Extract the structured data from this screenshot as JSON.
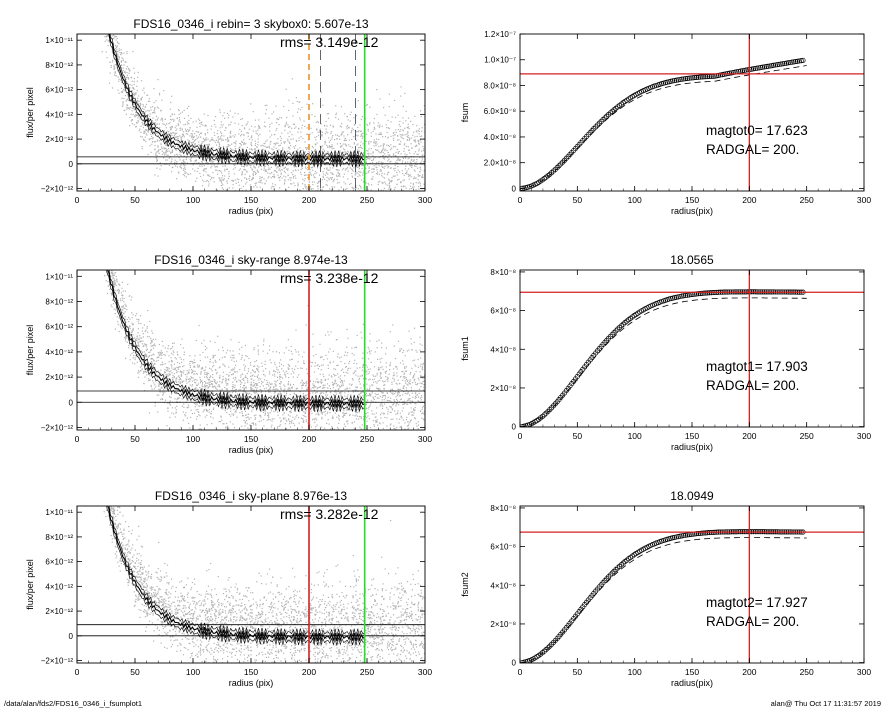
{
  "footer": {
    "path": "/data/alan/fds2/FDS16_0346_i_fsumplot1",
    "user_time": "alan@  Thu Oct 17 11:31:57 2019"
  },
  "colors": {
    "scatter": "#b4b4b4",
    "profile": "#000000",
    "orange_line": "#e8962c",
    "red_line": "#d42020",
    "green_line": "#22dd22",
    "axis": "#000000"
  },
  "chart_data": [
    {
      "id": "left1",
      "type": "scatter",
      "title": "FDS16_0346_i rebin= 3    skybox0:  5.607e-13",
      "rms_label": "rms= 3.149e-12",
      "xlabel": "radius (pix)",
      "ylabel": "flux/per pixel",
      "xlim": [
        0,
        300
      ],
      "ylim": [
        -2.2e-12,
        1.05e-11
      ],
      "xticks": [
        "0",
        "50",
        "100",
        "150",
        "200",
        "250",
        "300"
      ],
      "yticks": [
        {
          "value": -2e-12,
          "label": "−2×10⁻¹²"
        },
        {
          "value": 0,
          "label": "0"
        },
        {
          "value": 2e-12,
          "label": "2×10⁻¹²"
        },
        {
          "value": 4e-12,
          "label": "4×10⁻¹²"
        },
        {
          "value": 6e-12,
          "label": "6×10⁻¹²"
        },
        {
          "value": 8e-12,
          "label": "8×10⁻¹²"
        },
        {
          "value": 1e-11,
          "label": "1×10⁻¹¹"
        }
      ],
      "sky_level": 5.607e-13,
      "profile_tail": 4e-13,
      "vlines": [
        {
          "x": 200,
          "color": "orange_line",
          "dash": true
        },
        {
          "x": 210,
          "color": "axis",
          "dash": true,
          "thin": true
        },
        {
          "x": 240,
          "color": "axis",
          "dash": true,
          "thin": true
        },
        {
          "x": 248,
          "color": "green_line",
          "dash": false
        }
      ]
    },
    {
      "id": "left2",
      "type": "scatter",
      "title": "FDS16_0346_i sky-range  8.974e-13",
      "rms_label": "rms= 3.238e-12",
      "xlabel": "radius (pix)",
      "ylabel": "flux/per pixel",
      "xlim": [
        0,
        300
      ],
      "ylim": [
        -2.2e-12,
        1.05e-11
      ],
      "xticks": [
        "0",
        "50",
        "100",
        "150",
        "200",
        "250",
        "300"
      ],
      "yticks": [
        {
          "value": -2e-12,
          "label": "−2×10⁻¹²"
        },
        {
          "value": 0,
          "label": "0"
        },
        {
          "value": 2e-12,
          "label": "2×10⁻¹²"
        },
        {
          "value": 4e-12,
          "label": "4×10⁻¹²"
        },
        {
          "value": 6e-12,
          "label": "6×10⁻¹²"
        },
        {
          "value": 8e-12,
          "label": "8×10⁻¹²"
        },
        {
          "value": 1e-11,
          "label": "1×10⁻¹¹"
        }
      ],
      "sky_level": 8.974e-13,
      "profile_tail": -1e-13,
      "vlines": [
        {
          "x": 200,
          "color": "red_line",
          "dash": false
        },
        {
          "x": 248,
          "color": "green_line",
          "dash": false
        }
      ]
    },
    {
      "id": "left3",
      "type": "scatter",
      "title": "FDS16_0346_i sky-plane  8.976e-13",
      "rms_label": "rms= 3.282e-12",
      "xlabel": "radius (pix)",
      "ylabel": "flux/per pixel",
      "xlim": [
        0,
        300
      ],
      "ylim": [
        -2.2e-12,
        1.05e-11
      ],
      "xticks": [
        "0",
        "50",
        "100",
        "150",
        "200",
        "250",
        "300"
      ],
      "yticks": [
        {
          "value": -2e-12,
          "label": "−2×10⁻¹²"
        },
        {
          "value": 0,
          "label": "0"
        },
        {
          "value": 2e-12,
          "label": "2×10⁻¹²"
        },
        {
          "value": 4e-12,
          "label": "4×10⁻¹²"
        },
        {
          "value": 6e-12,
          "label": "6×10⁻¹²"
        },
        {
          "value": 8e-12,
          "label": "8×10⁻¹²"
        },
        {
          "value": 1e-11,
          "label": "1×10⁻¹¹"
        }
      ],
      "sky_level": 8.976e-13,
      "profile_tail": -1e-13,
      "vlines": [
        {
          "x": 200,
          "color": "red_line",
          "dash": false
        },
        {
          "x": 248,
          "color": "green_line",
          "dash": false
        }
      ]
    },
    {
      "id": "right1",
      "type": "line",
      "title": "",
      "xlabel": "radius(pix)",
      "ylabel": "fsum",
      "xlim": [
        0,
        300
      ],
      "ylim": [
        -2e-09,
        1.2e-07
      ],
      "xticks": [
        "0",
        "50",
        "100",
        "150",
        "200",
        "250",
        "300"
      ],
      "yticks": [
        {
          "value": 0,
          "label": "0"
        },
        {
          "value": 2e-08,
          "label": "2.0×10⁻⁸"
        },
        {
          "value": 4e-08,
          "label": "4.0×10⁻⁸"
        },
        {
          "value": 6e-08,
          "label": "6.0×10⁻⁸"
        },
        {
          "value": 8e-08,
          "label": "8.0×10⁻⁸"
        },
        {
          "value": 1e-07,
          "label": "1.0×10⁻⁷"
        },
        {
          "value": 1.2e-07,
          "label": "1.2×10⁻⁷"
        }
      ],
      "plateau": 8.8e-08,
      "final": 1e-07,
      "hline": 8.9e-08,
      "vline": 200,
      "annotation": [
        "magtot0=  17.623",
        "RADGAL=    200."
      ]
    },
    {
      "id": "right2",
      "type": "line",
      "title": "18.0565",
      "xlabel": "radius(pix)",
      "ylabel": "fsum1",
      "xlim": [
        0,
        300
      ],
      "ylim": [
        -2e-10,
        8.1e-08
      ],
      "xticks": [
        "0",
        "50",
        "100",
        "150",
        "200",
        "250",
        "300"
      ],
      "yticks": [
        {
          "value": 0,
          "label": "0"
        },
        {
          "value": 2e-08,
          "label": "2×10⁻⁸"
        },
        {
          "value": 4e-08,
          "label": "4×10⁻⁸"
        },
        {
          "value": 6e-08,
          "label": "6×10⁻⁸"
        },
        {
          "value": 8e-08,
          "label": "8×10⁻⁸"
        }
      ],
      "plateau": 7e-08,
      "final": 6.95e-08,
      "hline": 6.95e-08,
      "vline": 200,
      "annotation": [
        "magtot1=  17.903",
        "RADGAL=    200."
      ]
    },
    {
      "id": "right3",
      "type": "line",
      "title": "18.0949",
      "xlabel": "radius(pix)",
      "ylabel": "fsum2",
      "xlim": [
        0,
        300
      ],
      "ylim": [
        -2e-10,
        8.1e-08
      ],
      "xticks": [
        "0",
        "50",
        "100",
        "150",
        "200",
        "250",
        "300"
      ],
      "yticks": [
        {
          "value": 0,
          "label": "0"
        },
        {
          "value": 2e-08,
          "label": "2×10⁻⁸"
        },
        {
          "value": 4e-08,
          "label": "4×10⁻⁸"
        },
        {
          "value": 6e-08,
          "label": "6×10⁻⁸"
        },
        {
          "value": 8e-08,
          "label": "8×10⁻⁸"
        }
      ],
      "plateau": 6.8e-08,
      "final": 6.75e-08,
      "hline": 6.75e-08,
      "vline": 200,
      "annotation": [
        "magtot2=  17.927",
        "RADGAL=    200."
      ]
    }
  ]
}
